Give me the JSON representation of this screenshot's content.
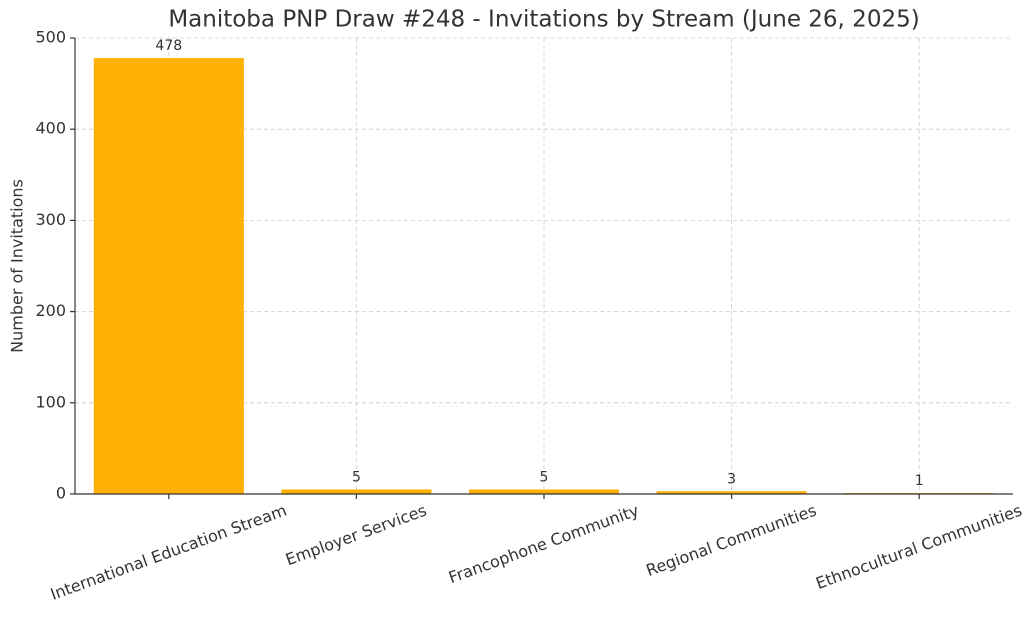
{
  "chart_data": {
    "type": "bar",
    "title": "Manitoba PNP Draw #248 - Invitations by Stream (June 26, 2025)",
    "y_label": "Number of Invitations",
    "categories": [
      "International Education Stream",
      "Employer Services",
      "Francophone Community",
      "Regional Communities",
      "Ethnocultural Communities"
    ],
    "values": [
      478,
      5,
      5,
      3,
      1
    ],
    "color": "#ffb000",
    "ylim": [
      0,
      500
    ],
    "yticks": [
      0,
      100,
      200,
      300,
      400,
      500
    ],
    "grid": true
  }
}
